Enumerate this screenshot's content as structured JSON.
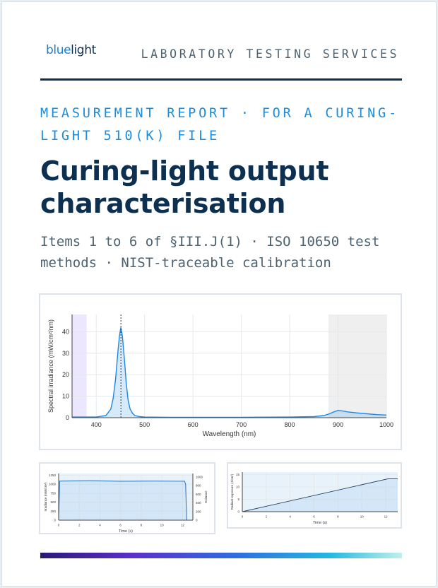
{
  "header": {
    "logo_part1": "blue",
    "logo_part2": "light",
    "services": "LABORATORY TESTING SERVICES"
  },
  "report": {
    "kicker": "MEASUREMENT REPORT · FOR A CURING-LIGHT 510(K) FILE",
    "title": "Curing-light output characterisation",
    "subtitle": "Items 1 to 6 of §III.J(1) · ISO 10650 test methods · NIST-traceable calibration"
  },
  "colors": {
    "brand_navy": "#0d3050",
    "brand_blue": "#1b8de0",
    "series_blue": "#1e88e5"
  },
  "chart_data": [
    {
      "type": "line",
      "xlabel": "Wavelength (nm)",
      "ylabel": "Spectral irradiance (mW/cm²/nm)",
      "xlim": [
        350,
        1000
      ],
      "ylim": [
        0,
        48
      ],
      "xticks": [
        400,
        500,
        600,
        700,
        800,
        900,
        1000
      ],
      "yticks": [
        0,
        10,
        20,
        30,
        40
      ],
      "peak_wavelength": 451,
      "shaded_bands": [
        [
          350,
          380
        ],
        [
          880,
          1000
        ]
      ],
      "series": [
        {
          "x": [
            350,
            400,
            420,
            430,
            435,
            440,
            445,
            448,
            451,
            454,
            458,
            462,
            466,
            470,
            475,
            480,
            490,
            500,
            550,
            600,
            700,
            800,
            850,
            870,
            880,
            890,
            900,
            910,
            920,
            940,
            960,
            980,
            1000
          ],
          "values": [
            0.3,
            0.3,
            1,
            4,
            9,
            18,
            31,
            38,
            42,
            38,
            28,
            16,
            8,
            4,
            2,
            1,
            0.5,
            0.3,
            0.2,
            0.2,
            0.2,
            0.3,
            0.5,
            1,
            1.6,
            2.6,
            3.4,
            3.1,
            2.7,
            2.2,
            1.8,
            1.4,
            1.2
          ]
        }
      ]
    },
    {
      "type": "line",
      "xlabel": "Time (s)",
      "ylabel": "Irradiance (mW/cm²)",
      "y2label": "Exitance",
      "xlim": [
        0,
        13
      ],
      "ylim": [
        0,
        1300
      ],
      "xticks": [
        0,
        2,
        4,
        6,
        8,
        10,
        12
      ],
      "yticks": [
        0,
        250,
        500,
        750,
        1000,
        1250
      ],
      "y2ticks": [
        0,
        200,
        400,
        600,
        800,
        1000
      ],
      "series": [
        {
          "x": [
            0,
            0.1,
            3,
            6,
            9,
            12.2,
            12.3,
            12.4
          ],
          "values": [
            0,
            1090,
            1100,
            1085,
            1090,
            1085,
            1000,
            0
          ]
        }
      ]
    },
    {
      "type": "line",
      "xlabel": "Time (s)",
      "ylabel": "Radiant exposure (J/cm²)",
      "xlim": [
        0,
        13
      ],
      "ylim": [
        0,
        16
      ],
      "xticks": [
        0,
        2,
        4,
        6,
        8,
        10,
        12
      ],
      "yticks": [
        0,
        5,
        10,
        15
      ],
      "series": [
        {
          "x": [
            0,
            12.2,
            13
          ],
          "values": [
            0,
            13.3,
            13.3
          ]
        }
      ]
    }
  ]
}
